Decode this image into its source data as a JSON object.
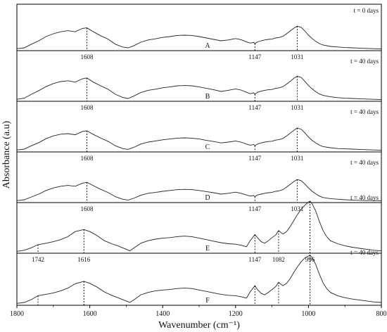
{
  "chart_data": {
    "type": "line",
    "title": "",
    "xlabel": "Wavenumber (cm⁻¹)",
    "ylabel": "Absorbance (a.u)",
    "xlim": [
      1800,
      800
    ],
    "x_reversed": true,
    "x_ticks": [
      1800,
      1600,
      1400,
      1200,
      1000,
      800
    ],
    "x_tick_labels": [
      "1800",
      "1600",
      "1400",
      "1200",
      "1000",
      "800"
    ],
    "panels": [
      {
        "label": "A",
        "time": "t = 0 days",
        "peaks": [
          {
            "x": 1608,
            "label": "1608"
          },
          {
            "x": 1147,
            "label": "1147"
          },
          {
            "x": 1031,
            "label": "1031"
          }
        ],
        "series": {
          "x": [
            1800,
            1780,
            1760,
            1740,
            1720,
            1700,
            1680,
            1660,
            1640,
            1620,
            1608,
            1590,
            1570,
            1550,
            1530,
            1510,
            1495,
            1480,
            1460,
            1440,
            1420,
            1400,
            1380,
            1360,
            1340,
            1320,
            1300,
            1280,
            1260,
            1240,
            1220,
            1200,
            1185,
            1170,
            1160,
            1150,
            1147,
            1140,
            1130,
            1120,
            1110,
            1100,
            1090,
            1080,
            1070,
            1060,
            1050,
            1040,
            1031,
            1020,
            1010,
            1000,
            990,
            980,
            970,
            960,
            940,
            920,
            900,
            880,
            860,
            840,
            820,
            800
          ],
          "values": [
            0.02,
            0.05,
            0.18,
            0.3,
            0.45,
            0.55,
            0.62,
            0.66,
            0.62,
            0.74,
            0.76,
            0.62,
            0.48,
            0.36,
            0.18,
            0.08,
            0.05,
            0.12,
            0.25,
            0.33,
            0.37,
            0.42,
            0.45,
            0.49,
            0.5,
            0.49,
            0.45,
            0.4,
            0.35,
            0.3,
            0.33,
            0.38,
            0.34,
            0.26,
            0.22,
            0.24,
            0.2,
            0.26,
            0.3,
            0.33,
            0.35,
            0.36,
            0.4,
            0.42,
            0.46,
            0.55,
            0.65,
            0.75,
            0.82,
            0.78,
            0.65,
            0.5,
            0.38,
            0.28,
            0.2,
            0.15,
            0.1,
            0.08,
            0.06,
            0.05,
            0.04,
            0.03,
            0.02,
            0.01
          ]
        }
      },
      {
        "label": "B",
        "time": "t = 40 days",
        "peaks": [
          {
            "x": 1608,
            "label": "1608"
          },
          {
            "x": 1147,
            "label": "1147"
          },
          {
            "x": 1031,
            "label": "1031"
          }
        ],
        "series": {
          "x": [
            1800,
            1780,
            1760,
            1740,
            1720,
            1700,
            1680,
            1660,
            1640,
            1620,
            1608,
            1590,
            1570,
            1550,
            1530,
            1510,
            1495,
            1480,
            1460,
            1440,
            1420,
            1400,
            1380,
            1360,
            1340,
            1320,
            1300,
            1280,
            1260,
            1240,
            1220,
            1200,
            1185,
            1170,
            1160,
            1150,
            1147,
            1140,
            1130,
            1120,
            1110,
            1100,
            1090,
            1080,
            1070,
            1060,
            1050,
            1040,
            1031,
            1020,
            1010,
            1000,
            990,
            980,
            970,
            960,
            940,
            920,
            900,
            880,
            860,
            840,
            820,
            800
          ],
          "values": [
            0.02,
            0.06,
            0.2,
            0.33,
            0.47,
            0.58,
            0.65,
            0.68,
            0.63,
            0.75,
            0.78,
            0.63,
            0.5,
            0.38,
            0.2,
            0.09,
            0.05,
            0.13,
            0.26,
            0.34,
            0.38,
            0.43,
            0.46,
            0.5,
            0.51,
            0.5,
            0.46,
            0.41,
            0.36,
            0.3,
            0.34,
            0.39,
            0.35,
            0.27,
            0.22,
            0.25,
            0.2,
            0.27,
            0.31,
            0.34,
            0.36,
            0.37,
            0.41,
            0.43,
            0.47,
            0.56,
            0.66,
            0.77,
            0.84,
            0.8,
            0.66,
            0.51,
            0.39,
            0.29,
            0.21,
            0.16,
            0.11,
            0.08,
            0.06,
            0.05,
            0.04,
            0.03,
            0.02,
            0.01
          ]
        }
      },
      {
        "label": "C",
        "time": "t = 40 days",
        "peaks": [
          {
            "x": 1608,
            "label": "1608"
          },
          {
            "x": 1147,
            "label": "1147"
          },
          {
            "x": 1031,
            "label": "1031"
          }
        ],
        "series": {
          "x": [
            1800,
            1780,
            1760,
            1740,
            1720,
            1700,
            1680,
            1660,
            1640,
            1620,
            1608,
            1590,
            1570,
            1550,
            1530,
            1510,
            1495,
            1480,
            1460,
            1440,
            1420,
            1400,
            1380,
            1360,
            1340,
            1320,
            1300,
            1280,
            1260,
            1240,
            1220,
            1200,
            1185,
            1170,
            1160,
            1150,
            1147,
            1140,
            1130,
            1120,
            1110,
            1100,
            1090,
            1080,
            1070,
            1060,
            1050,
            1040,
            1031,
            1020,
            1010,
            1000,
            990,
            980,
            970,
            960,
            940,
            920,
            900,
            880,
            860,
            840,
            820,
            800
          ],
          "values": [
            0.02,
            0.05,
            0.17,
            0.28,
            0.42,
            0.52,
            0.58,
            0.6,
            0.56,
            0.68,
            0.7,
            0.57,
            0.44,
            0.33,
            0.17,
            0.07,
            0.04,
            0.11,
            0.23,
            0.3,
            0.34,
            0.38,
            0.41,
            0.44,
            0.45,
            0.44,
            0.41,
            0.36,
            0.32,
            0.27,
            0.3,
            0.34,
            0.3,
            0.23,
            0.19,
            0.21,
            0.17,
            0.23,
            0.27,
            0.3,
            0.32,
            0.33,
            0.37,
            0.39,
            0.43,
            0.52,
            0.62,
            0.72,
            0.8,
            0.76,
            0.63,
            0.48,
            0.36,
            0.27,
            0.19,
            0.14,
            0.1,
            0.07,
            0.06,
            0.05,
            0.04,
            0.03,
            0.02,
            0.01
          ]
        }
      },
      {
        "label": "D",
        "time": "t = 40 days",
        "peaks": [
          {
            "x": 1608,
            "label": "1608"
          },
          {
            "x": 1147,
            "label": "1147"
          },
          {
            "x": 1031,
            "label": "1031"
          }
        ],
        "series": {
          "x": [
            1800,
            1780,
            1760,
            1740,
            1720,
            1700,
            1680,
            1660,
            1640,
            1620,
            1608,
            1590,
            1570,
            1550,
            1530,
            1510,
            1495,
            1480,
            1460,
            1440,
            1420,
            1400,
            1380,
            1360,
            1340,
            1320,
            1300,
            1280,
            1260,
            1240,
            1220,
            1200,
            1185,
            1170,
            1160,
            1150,
            1147,
            1140,
            1130,
            1120,
            1110,
            1100,
            1090,
            1080,
            1070,
            1060,
            1050,
            1040,
            1031,
            1020,
            1010,
            1000,
            990,
            980,
            970,
            960,
            940,
            920,
            900,
            880,
            860,
            840,
            820,
            800
          ],
          "values": [
            0.02,
            0.05,
            0.15,
            0.25,
            0.38,
            0.47,
            0.53,
            0.56,
            0.53,
            0.64,
            0.67,
            0.55,
            0.42,
            0.31,
            0.16,
            0.07,
            0.04,
            0.1,
            0.21,
            0.28,
            0.31,
            0.35,
            0.38,
            0.41,
            0.42,
            0.41,
            0.38,
            0.34,
            0.3,
            0.25,
            0.28,
            0.32,
            0.28,
            0.22,
            0.18,
            0.2,
            0.16,
            0.22,
            0.25,
            0.28,
            0.3,
            0.31,
            0.35,
            0.37,
            0.41,
            0.5,
            0.6,
            0.7,
            0.77,
            0.73,
            0.61,
            0.47,
            0.35,
            0.26,
            0.18,
            0.13,
            0.09,
            0.07,
            0.05,
            0.04,
            0.03,
            0.02,
            0.02,
            0.01
          ]
        }
      },
      {
        "label": "E",
        "time": "t = 40 days",
        "peaks": [
          {
            "x": 1742,
            "label": "1742"
          },
          {
            "x": 1616,
            "label": "1616"
          },
          {
            "x": 1147,
            "label": "1147"
          },
          {
            "x": 1082,
            "label": "1082"
          },
          {
            "x": 996,
            "label": "996"
          }
        ],
        "series": {
          "x": [
            1800,
            1780,
            1760,
            1742,
            1720,
            1700,
            1680,
            1660,
            1640,
            1616,
            1600,
            1580,
            1560,
            1540,
            1520,
            1500,
            1490,
            1480,
            1460,
            1440,
            1420,
            1400,
            1380,
            1360,
            1340,
            1320,
            1300,
            1280,
            1260,
            1240,
            1220,
            1200,
            1185,
            1170,
            1160,
            1147,
            1140,
            1130,
            1120,
            1110,
            1100,
            1090,
            1082,
            1070,
            1060,
            1050,
            1040,
            1030,
            1020,
            1010,
            1000,
            996,
            990,
            980,
            970,
            960,
            950,
            940,
            920,
            900,
            880,
            860,
            840,
            820,
            800
          ],
          "values": [
            0.01,
            0.03,
            0.08,
            0.14,
            0.17,
            0.2,
            0.24,
            0.3,
            0.4,
            0.44,
            0.4,
            0.32,
            0.22,
            0.16,
            0.11,
            0.05,
            0.02,
            0.07,
            0.17,
            0.22,
            0.25,
            0.27,
            0.28,
            0.3,
            0.31,
            0.3,
            0.27,
            0.24,
            0.21,
            0.18,
            0.16,
            0.15,
            0.13,
            0.1,
            0.22,
            0.34,
            0.28,
            0.2,
            0.17,
            0.22,
            0.28,
            0.33,
            0.42,
            0.35,
            0.4,
            0.5,
            0.62,
            0.74,
            0.84,
            0.92,
            0.98,
            1.0,
            0.95,
            0.8,
            0.6,
            0.42,
            0.3,
            0.22,
            0.16,
            0.12,
            0.09,
            0.07,
            0.05,
            0.03,
            0.02
          ]
        }
      },
      {
        "label": "F",
        "time": "t = 40 days",
        "peaks": [
          {
            "x": 1742,
            "label": ""
          },
          {
            "x": 1616,
            "label": ""
          },
          {
            "x": 1147,
            "label": ""
          },
          {
            "x": 1082,
            "label": ""
          },
          {
            "x": 996,
            "label": ""
          }
        ],
        "series": {
          "x": [
            1800,
            1780,
            1760,
            1742,
            1720,
            1700,
            1680,
            1660,
            1640,
            1616,
            1600,
            1580,
            1560,
            1540,
            1520,
            1500,
            1490,
            1480,
            1460,
            1440,
            1420,
            1400,
            1380,
            1360,
            1340,
            1320,
            1300,
            1280,
            1260,
            1240,
            1220,
            1200,
            1185,
            1170,
            1160,
            1147,
            1140,
            1130,
            1120,
            1110,
            1100,
            1090,
            1082,
            1070,
            1060,
            1050,
            1040,
            1030,
            1020,
            1010,
            1000,
            996,
            990,
            980,
            970,
            960,
            950,
            940,
            920,
            900,
            880,
            860,
            840,
            820,
            800
          ],
          "values": [
            0.01,
            0.03,
            0.09,
            0.17,
            0.2,
            0.23,
            0.27,
            0.33,
            0.42,
            0.47,
            0.43,
            0.35,
            0.25,
            0.18,
            0.12,
            0.06,
            0.03,
            0.08,
            0.19,
            0.24,
            0.27,
            0.29,
            0.3,
            0.32,
            0.33,
            0.32,
            0.29,
            0.26,
            0.23,
            0.2,
            0.18,
            0.17,
            0.15,
            0.12,
            0.25,
            0.38,
            0.3,
            0.22,
            0.19,
            0.24,
            0.3,
            0.36,
            0.45,
            0.38,
            0.43,
            0.53,
            0.66,
            0.78,
            0.88,
            0.96,
            1.0,
            1.02,
            0.97,
            0.82,
            0.62,
            0.44,
            0.32,
            0.24,
            0.17,
            0.13,
            0.1,
            0.08,
            0.06,
            0.04,
            0.03
          ]
        }
      }
    ]
  }
}
